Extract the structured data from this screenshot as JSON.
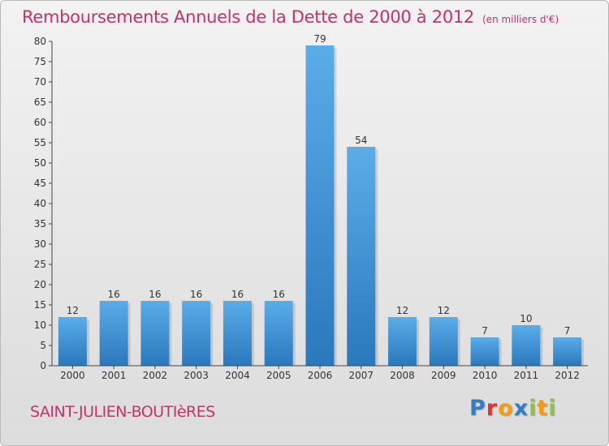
{
  "header": {
    "title": "Remboursements Annuels de la Dette de 2000 à 2012",
    "unit": "(en milliers d'€)"
  },
  "footer": {
    "town": "SAINT-JULIEN-BOUTIèRES",
    "logo": [
      "P",
      "r",
      "o",
      "x",
      "i",
      "t",
      "i"
    ],
    "logo_colors": [
      "#2f7fc8",
      "#e2342c",
      "#f39c12",
      "#2f7fc8",
      "#8cc63f",
      "#f39c12",
      "#8cc63f"
    ]
  },
  "chart_data": {
    "type": "bar",
    "categories": [
      "2000",
      "2001",
      "2002",
      "2003",
      "2004",
      "2005",
      "2006",
      "2007",
      "2008",
      "2009",
      "2010",
      "2011",
      "2012"
    ],
    "values": [
      12,
      16,
      16,
      16,
      16,
      16,
      79,
      54,
      12,
      12,
      7,
      10,
      7
    ],
    "data_labels": [
      "12",
      "16",
      "16",
      "16",
      "16",
      "16",
      "79",
      "54",
      "12",
      "12",
      "7",
      "10",
      "7"
    ],
    "ylim": [
      0,
      80
    ],
    "yticks": [
      0,
      5,
      10,
      15,
      20,
      25,
      30,
      35,
      40,
      45,
      50,
      55,
      60,
      65,
      70,
      75,
      80
    ],
    "grid": false,
    "colors": {
      "bar_light": "#5aade8",
      "bar_dark": "#2a78bd",
      "axis": "#444444"
    }
  }
}
